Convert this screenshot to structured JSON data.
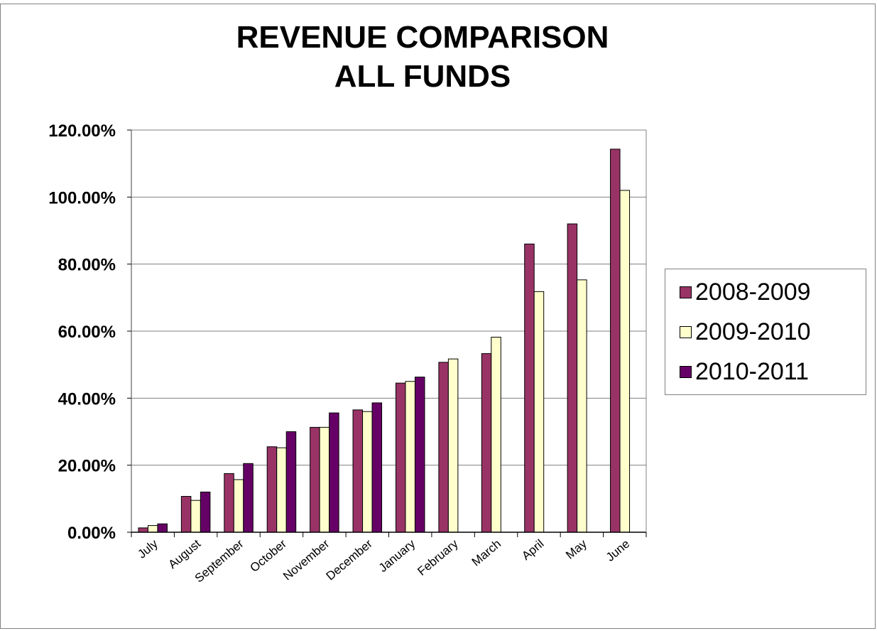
{
  "colors": {
    "series_2008": "#993366",
    "series_2009": "#FFFFCC",
    "series_2010": "#660066",
    "gridline": "#808080",
    "axis": "#808080"
  },
  "chart_data": {
    "type": "bar",
    "title": "REVENUE COMPARISON",
    "subtitle": "ALL FUNDS",
    "xlabel": "",
    "ylabel": "",
    "ylim": [
      0,
      120
    ],
    "y_ticks": [
      "0.00%",
      "20.00%",
      "40.00%",
      "60.00%",
      "80.00%",
      "100.00%",
      "120.00%"
    ],
    "grid": true,
    "legend_position": "right",
    "categories": [
      "July",
      "August",
      "September",
      "October",
      "November",
      "December",
      "January",
      "February",
      "March",
      "April",
      "May",
      "June"
    ],
    "series": [
      {
        "name": "2008-2009",
        "color": "#993366",
        "values": [
          1.3,
          10.7,
          17.5,
          25.5,
          31.3,
          36.5,
          44.5,
          50.7,
          53.3,
          86.0,
          92.0,
          114.3
        ]
      },
      {
        "name": "2009-2010",
        "color": "#FFFFCC",
        "values": [
          2.0,
          9.5,
          15.7,
          25.2,
          31.3,
          36.0,
          45.0,
          51.7,
          58.2,
          71.8,
          75.3,
          102.0
        ]
      },
      {
        "name": "2010-2011",
        "color": "#660066",
        "values": [
          2.5,
          12.0,
          20.5,
          30.0,
          35.6,
          38.6,
          46.3,
          null,
          null,
          null,
          null,
          null
        ]
      }
    ]
  }
}
